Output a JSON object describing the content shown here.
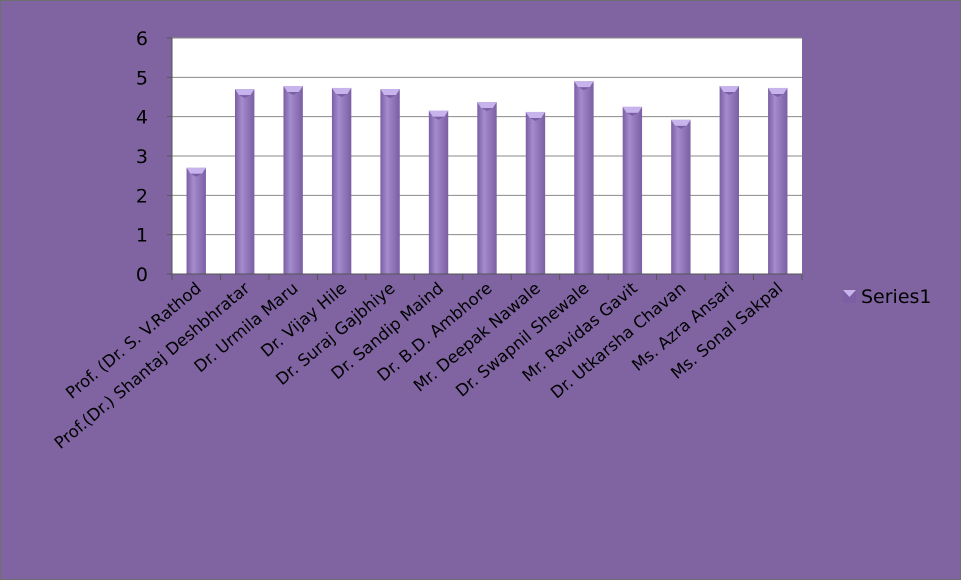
{
  "chart_data": {
    "type": "bar",
    "title": "",
    "xlabel": "",
    "ylabel": "",
    "categories": [
      "Prof. (Dr. S. V.Rathod",
      "Prof.(Dr.) Shantaj Deshbhratar",
      "Dr. Urmila Maru",
      "Dr. Vijay Hile",
      "Dr. Suraj Gajbhiye",
      "Dr. Sandip Maind",
      "Dr. B.D. Ambhore",
      "Mr. Deepak Nawale",
      "Dr. Swapnil Shewale",
      "Mr. Ravidas Gavit",
      "Dr. Utkarsha Chavan",
      "Ms. Azra Ansari",
      "Ms. Sonal Sakpal"
    ],
    "series": [
      {
        "name": "Series1",
        "values": [
          2.7,
          4.7,
          4.78,
          4.73,
          4.7,
          4.15,
          4.37,
          4.12,
          4.9,
          4.25,
          3.92,
          4.78,
          4.73
        ]
      }
    ],
    "ylim": [
      0,
      6
    ],
    "yticks": [
      "0",
      "1",
      "2",
      "3",
      "4",
      "5",
      "6"
    ],
    "grid": true,
    "legend": "right",
    "colors": {
      "background": "#8064a2",
      "plot_area": "#ffffff",
      "bar": "#7b5ea4",
      "bar_highlight": "#a48ccd",
      "bar_top": "#c8b4ec",
      "gridline": "#8a8a8a"
    }
  }
}
